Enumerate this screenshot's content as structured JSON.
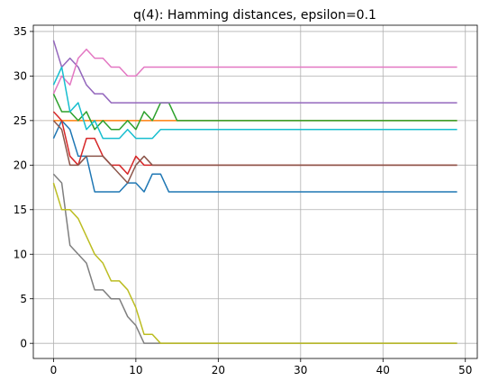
{
  "chart_data": {
    "type": "line",
    "title": "q(4): Hamming distances, epsilon=0.1",
    "xlabel": "",
    "ylabel": "",
    "xlim": [
      -2.45,
      51.45
    ],
    "ylim": [
      -1.7,
      35.7
    ],
    "xticks": [
      0,
      10,
      20,
      30,
      40,
      50
    ],
    "yticks": [
      0,
      5,
      10,
      15,
      20,
      25,
      30,
      35
    ],
    "grid": true,
    "legend": "none",
    "series": [
      {
        "color": "#1f77b4",
        "values": [
          23,
          25,
          24,
          21,
          21,
          17,
          17,
          17,
          17,
          18,
          18,
          17,
          19,
          19,
          17,
          17,
          17,
          17,
          17,
          17,
          17,
          17,
          17,
          17,
          17,
          17,
          17,
          17,
          17,
          17,
          17,
          17,
          17,
          17,
          17,
          17,
          17,
          17,
          17,
          17,
          17,
          17,
          17,
          17,
          17,
          17,
          17,
          17,
          17,
          17
        ]
      },
      {
        "color": "#ff7f0e",
        "values": [
          25,
          25,
          25,
          25,
          25,
          25,
          25,
          25,
          25,
          25,
          25,
          25,
          25,
          25,
          25,
          25,
          25,
          25,
          25,
          25,
          25,
          25,
          25,
          25,
          25,
          25,
          25,
          25,
          25,
          25,
          25,
          25,
          25,
          25,
          25,
          25,
          25,
          25,
          25,
          25,
          25,
          25,
          25,
          25,
          25,
          25,
          25,
          25,
          25,
          25
        ]
      },
      {
        "color": "#2ca02c",
        "values": [
          28,
          26,
          26,
          25,
          26,
          24,
          25,
          24,
          24,
          25,
          24,
          26,
          25,
          27,
          27,
          25,
          25,
          25,
          25,
          25,
          25,
          25,
          25,
          25,
          25,
          25,
          25,
          25,
          25,
          25,
          25,
          25,
          25,
          25,
          25,
          25,
          25,
          25,
          25,
          25,
          25,
          25,
          25,
          25,
          25,
          25,
          25,
          25,
          25,
          25
        ]
      },
      {
        "color": "#d62728",
        "values": [
          26,
          25,
          21,
          20,
          23,
          23,
          21,
          20,
          20,
          19,
          21,
          20,
          20,
          20,
          20,
          20,
          20,
          20,
          20,
          20,
          20,
          20,
          20,
          20,
          20,
          20,
          20,
          20,
          20,
          20,
          20,
          20,
          20,
          20,
          20,
          20,
          20,
          20,
          20,
          20,
          20,
          20,
          20,
          20,
          20,
          20,
          20,
          20,
          20,
          20
        ]
      },
      {
        "color": "#9467bd",
        "values": [
          34,
          31,
          32,
          31,
          29,
          28,
          28,
          27,
          27,
          27,
          27,
          27,
          27,
          27,
          27,
          27,
          27,
          27,
          27,
          27,
          27,
          27,
          27,
          27,
          27,
          27,
          27,
          27,
          27,
          27,
          27,
          27,
          27,
          27,
          27,
          27,
          27,
          27,
          27,
          27,
          27,
          27,
          27,
          27,
          27,
          27,
          27,
          27,
          27,
          27
        ]
      },
      {
        "color": "#8c564b",
        "values": [
          25,
          24,
          20,
          20,
          21,
          21,
          21,
          20,
          19,
          18,
          20,
          21,
          20,
          20,
          20,
          20,
          20,
          20,
          20,
          20,
          20,
          20,
          20,
          20,
          20,
          20,
          20,
          20,
          20,
          20,
          20,
          20,
          20,
          20,
          20,
          20,
          20,
          20,
          20,
          20,
          20,
          20,
          20,
          20,
          20,
          20,
          20,
          20,
          20,
          20
        ]
      },
      {
        "color": "#e377c2",
        "values": [
          28,
          30,
          29,
          32,
          33,
          32,
          32,
          31,
          31,
          30,
          30,
          31,
          31,
          31,
          31,
          31,
          31,
          31,
          31,
          31,
          31,
          31,
          31,
          31,
          31,
          31,
          31,
          31,
          31,
          31,
          31,
          31,
          31,
          31,
          31,
          31,
          31,
          31,
          31,
          31,
          31,
          31,
          31,
          31,
          31,
          31,
          31,
          31,
          31,
          31
        ]
      },
      {
        "color": "#7f7f7f",
        "values": [
          19,
          18,
          11,
          10,
          9,
          6,
          6,
          5,
          5,
          3,
          2,
          0,
          0,
          0,
          0,
          0,
          0,
          0,
          0,
          0,
          0,
          0,
          0,
          0,
          0,
          0,
          0,
          0,
          0,
          0,
          0,
          0,
          0,
          0,
          0,
          0,
          0,
          0,
          0,
          0,
          0,
          0,
          0,
          0,
          0,
          0,
          0,
          0,
          0,
          0
        ]
      },
      {
        "color": "#bcbd22",
        "values": [
          18,
          15,
          15,
          14,
          12,
          10,
          9,
          7,
          7,
          6,
          4,
          1,
          1,
          0,
          0,
          0,
          0,
          0,
          0,
          0,
          0,
          0,
          0,
          0,
          0,
          0,
          0,
          0,
          0,
          0,
          0,
          0,
          0,
          0,
          0,
          0,
          0,
          0,
          0,
          0,
          0,
          0,
          0,
          0,
          0,
          0,
          0,
          0,
          0,
          0
        ]
      },
      {
        "color": "#17becf",
        "values": [
          29,
          31,
          26,
          27,
          24,
          25,
          23,
          23,
          23,
          24,
          23,
          23,
          23,
          24,
          24,
          24,
          24,
          24,
          24,
          24,
          24,
          24,
          24,
          24,
          24,
          24,
          24,
          24,
          24,
          24,
          24,
          24,
          24,
          24,
          24,
          24,
          24,
          24,
          24,
          24,
          24,
          24,
          24,
          24,
          24,
          24,
          24,
          24,
          24,
          24
        ]
      }
    ]
  }
}
